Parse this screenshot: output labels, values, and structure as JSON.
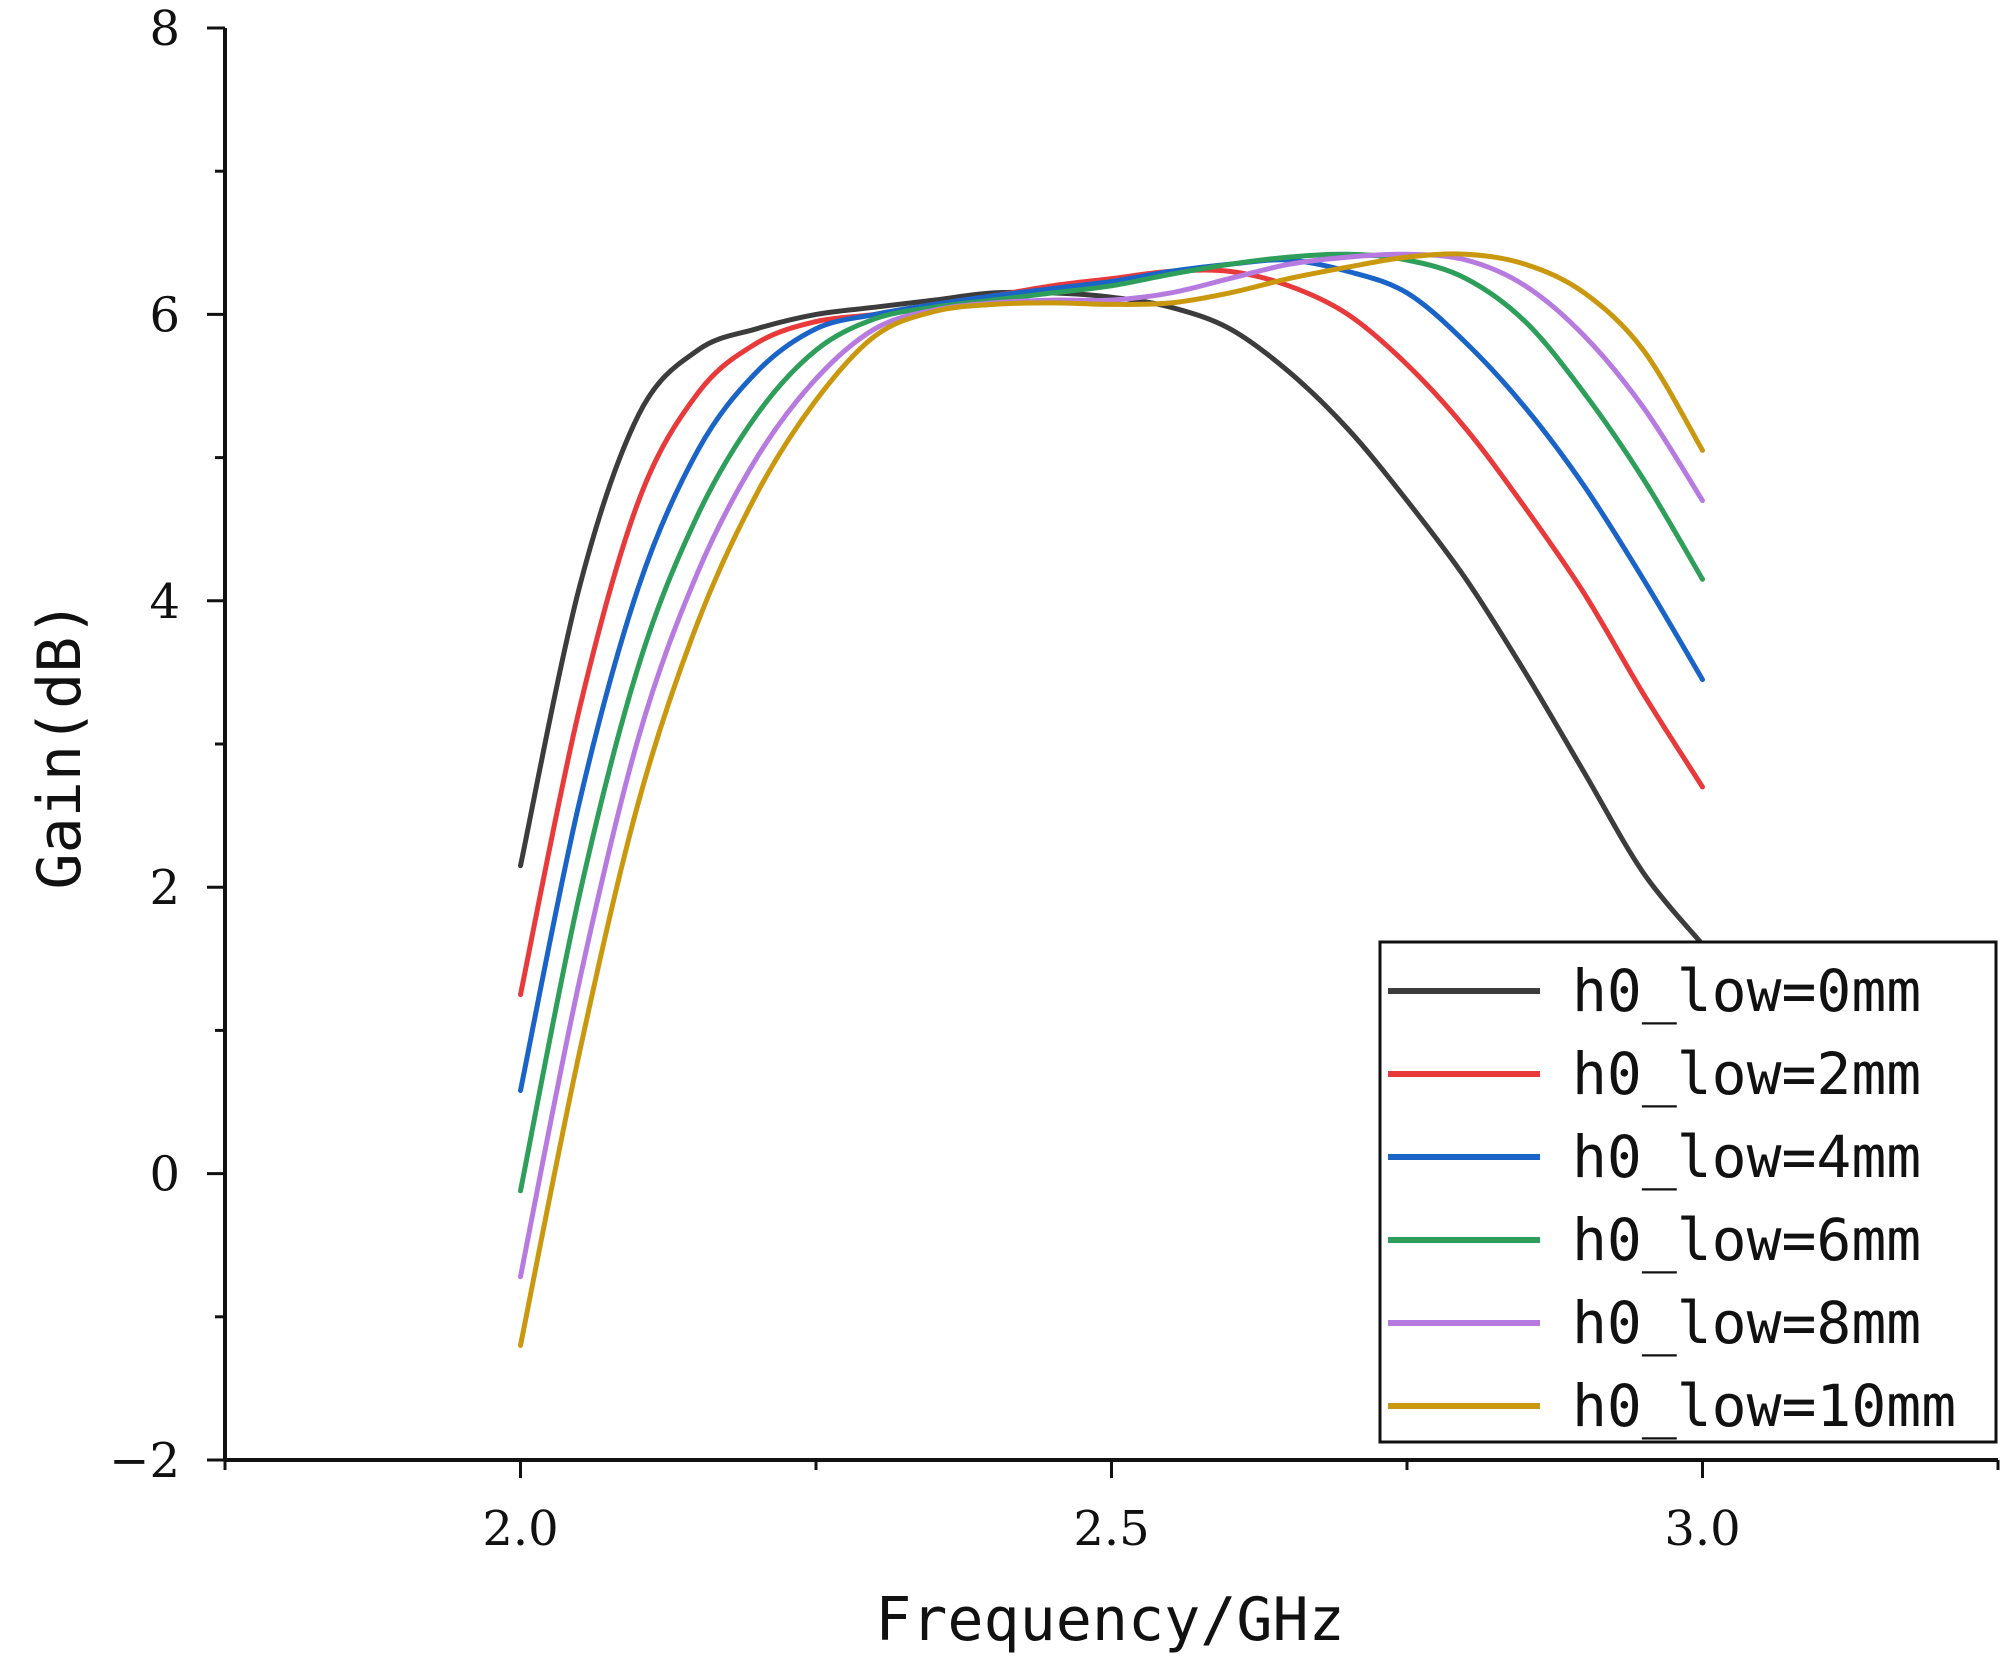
{
  "chart_data": {
    "type": "line",
    "title": "",
    "xlabel": "Frequency/GHz",
    "ylabel": "Gain(dB)",
    "xlim": [
      1.75,
      3.25
    ],
    "ylim": [
      -2,
      8
    ],
    "xticks": [
      2.0,
      2.5,
      3.0
    ],
    "xtick_labels": [
      "2.0",
      "2.5",
      "3.0"
    ],
    "yticks": [
      -2,
      0,
      2,
      4,
      6,
      8
    ],
    "ytick_labels": [
      "−2",
      "0",
      "2",
      "4",
      "6",
      "8"
    ],
    "grid": false,
    "legend_position": "bottom-right",
    "x": [
      2.0,
      2.05,
      2.1,
      2.15,
      2.2,
      2.25,
      2.3,
      2.35,
      2.4,
      2.45,
      2.5,
      2.55,
      2.6,
      2.65,
      2.7,
      2.75,
      2.8,
      2.85,
      2.9,
      2.95,
      3.0
    ],
    "series": [
      {
        "name": "h0_low=0mm",
        "color": "#3c3c3c",
        "values": [
          2.15,
          4.1,
          5.3,
          5.75,
          5.9,
          6.0,
          6.05,
          6.1,
          6.15,
          6.15,
          6.12,
          6.05,
          5.9,
          5.6,
          5.2,
          4.7,
          4.15,
          3.5,
          2.8,
          2.1,
          1.6
        ]
      },
      {
        "name": "h0_low=2mm",
        "color": "#e8393b",
        "values": [
          1.25,
          3.25,
          4.7,
          5.45,
          5.8,
          5.95,
          6.0,
          6.07,
          6.13,
          6.2,
          6.25,
          6.3,
          6.3,
          6.2,
          6.0,
          5.65,
          5.2,
          4.65,
          4.05,
          3.35,
          2.7
        ]
      },
      {
        "name": "h0_low=4mm",
        "color": "#1a64c8",
        "values": [
          0.58,
          2.6,
          4.1,
          5.05,
          5.6,
          5.9,
          6.0,
          6.07,
          6.13,
          6.18,
          6.23,
          6.3,
          6.35,
          6.38,
          6.3,
          6.15,
          5.8,
          5.35,
          4.8,
          4.15,
          3.45
        ]
      },
      {
        "name": "h0_low=6mm",
        "color": "#2e9e5b",
        "values": [
          -0.12,
          1.95,
          3.55,
          4.6,
          5.3,
          5.75,
          5.97,
          6.05,
          6.1,
          6.15,
          6.2,
          6.28,
          6.35,
          6.4,
          6.42,
          6.38,
          6.25,
          5.95,
          5.45,
          4.85,
          4.15
        ]
      },
      {
        "name": "h0_low=8mm",
        "color": "#b77be0",
        "values": [
          -0.72,
          1.35,
          3.05,
          4.2,
          5.0,
          5.55,
          5.9,
          6.03,
          6.08,
          6.1,
          6.1,
          6.15,
          6.25,
          6.35,
          6.4,
          6.42,
          6.38,
          6.2,
          5.85,
          5.35,
          4.7
        ]
      },
      {
        "name": "h0_low=10mm",
        "color": "#c9980f",
        "values": [
          -1.2,
          0.85,
          2.6,
          3.85,
          4.75,
          5.4,
          5.85,
          6.02,
          6.07,
          6.08,
          6.07,
          6.08,
          6.15,
          6.25,
          6.33,
          6.4,
          6.42,
          6.35,
          6.15,
          5.75,
          5.05
        ]
      }
    ]
  }
}
